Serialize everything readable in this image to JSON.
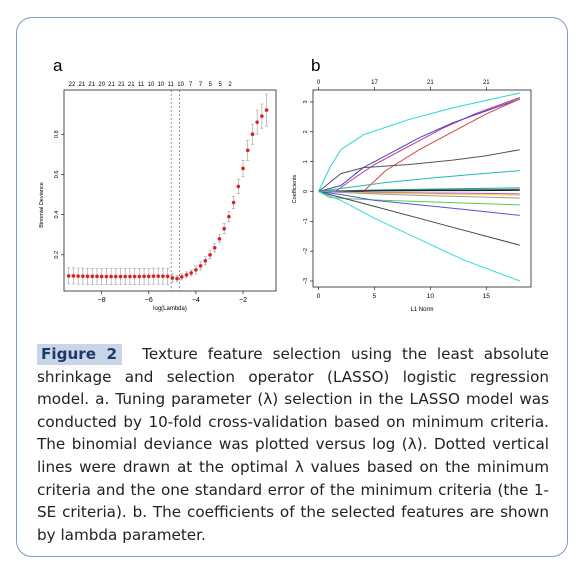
{
  "figure": {
    "panel_a_letter": "a",
    "panel_b_letter": "b",
    "label": "Figure 2",
    "caption": "Texture feature selection using the least absolute shrinkage and selection operator (LASSO) logistic regression model. a. Tuning parameter (λ) selection in the LASSO model was conducted by 10-fold cross-validation based on minimum criteria. The binomial deviance was plotted versus log (λ). Dotted vertical lines were drawn at the optimal λ values based on the minimum criteria and the one standard error of the minimum criteria (the 1-SE criteria). b. The coefficients of the selected features are shown by lambda parameter."
  },
  "chart_data": [
    {
      "type": "scatter",
      "xlabel": "log(Lambda)",
      "ylabel": "Binomial Deviance",
      "xlim": [
        -9.6,
        -0.6
      ],
      "ylim": [
        0.02,
        1.02
      ],
      "x_ticks": [
        -8,
        -6,
        -4,
        -2
      ],
      "y_ticks": [
        0.2,
        0.4,
        0.6,
        0.8
      ],
      "top_axis_labels": [
        "22",
        "21",
        "21",
        "20",
        "21",
        "21",
        "21",
        "11",
        "10",
        "10",
        "11",
        "10",
        "7",
        "7",
        "5",
        "5",
        "2"
      ],
      "reference_lines_x": [
        -5.05,
        -4.7
      ],
      "grid": false,
      "series": [
        {
          "x": [
            -9.4,
            -9.2,
            -9.0,
            -8.8,
            -8.6,
            -8.4,
            -8.2,
            -8.0,
            -7.8,
            -7.6,
            -7.4,
            -7.2,
            -7.0,
            -6.8,
            -6.6,
            -6.4,
            -6.2,
            -6.0,
            -5.8,
            -5.6,
            -5.4,
            -5.2,
            -5.0,
            -4.8,
            -4.6,
            -4.4,
            -4.2,
            -4.0,
            -3.8,
            -3.6,
            -3.4,
            -3.2,
            -3.0,
            -2.8,
            -2.6,
            -2.4,
            -2.2,
            -2.0,
            -1.8,
            -1.6,
            -1.4,
            -1.2,
            -1.0
          ],
          "y": [
            0.095,
            0.095,
            0.094,
            0.094,
            0.093,
            0.093,
            0.093,
            0.092,
            0.092,
            0.092,
            0.092,
            0.092,
            0.092,
            0.092,
            0.092,
            0.092,
            0.093,
            0.093,
            0.094,
            0.094,
            0.094,
            0.093,
            0.085,
            0.082,
            0.09,
            0.1,
            0.11,
            0.125,
            0.145,
            0.17,
            0.2,
            0.235,
            0.28,
            0.33,
            0.39,
            0.46,
            0.54,
            0.63,
            0.72,
            0.8,
            0.86,
            0.89,
            0.92
          ],
          "error": [
            0.04,
            0.04,
            0.04,
            0.04,
            0.04,
            0.04,
            0.04,
            0.04,
            0.04,
            0.04,
            0.04,
            0.04,
            0.04,
            0.04,
            0.04,
            0.04,
            0.04,
            0.04,
            0.04,
            0.04,
            0.04,
            0.04,
            0.02,
            0.015,
            0.015,
            0.015,
            0.015,
            0.02,
            0.02,
            0.02,
            0.02,
            0.02,
            0.02,
            0.025,
            0.025,
            0.03,
            0.035,
            0.04,
            0.05,
            0.05,
            0.06,
            0.06,
            0.08
          ],
          "color": "#e02020"
        }
      ]
    },
    {
      "type": "line",
      "xlabel": "L1 Norm",
      "ylabel": "Coefficients",
      "xlim": [
        -0.5,
        19
      ],
      "ylim": [
        -3.2,
        3.4
      ],
      "x_ticks": [
        0,
        5,
        10,
        15
      ],
      "y_ticks": [
        -3,
        -2,
        -1,
        0,
        1,
        2,
        3
      ],
      "top_axis_ticks": [
        0,
        5,
        10,
        15
      ],
      "top_axis_labels": [
        "0",
        "17",
        "21",
        "21"
      ],
      "grid": false,
      "series": [
        {
          "color": "#26d6d6",
          "x": [
            0,
            1,
            2,
            4,
            8,
            12,
            15,
            18
          ],
          "y": [
            0,
            0.8,
            1.4,
            1.9,
            2.4,
            2.8,
            3.05,
            3.3
          ]
        },
        {
          "color": "#c03b8a",
          "x": [
            0,
            1.5,
            3,
            5,
            8,
            11,
            14,
            18
          ],
          "y": [
            0,
            0,
            0.4,
            0.9,
            1.5,
            2.1,
            2.6,
            3.15
          ]
        },
        {
          "color": "#4444cc",
          "x": [
            0,
            2,
            4,
            6,
            9,
            12,
            15,
            18
          ],
          "y": [
            0,
            0.2,
            0.8,
            1.2,
            1.8,
            2.3,
            2.7,
            3.1
          ]
        },
        {
          "color": "#dd4444",
          "x": [
            0,
            4,
            6,
            9,
            12,
            15,
            18
          ],
          "y": [
            0,
            0,
            0.7,
            1.4,
            2.0,
            2.6,
            3.1
          ]
        },
        {
          "color": "#555555",
          "x": [
            0,
            2,
            4,
            8,
            12,
            15,
            18
          ],
          "y": [
            0,
            0.6,
            0.8,
            0.9,
            1.05,
            1.2,
            1.4
          ]
        },
        {
          "color": "#22b8b8",
          "x": [
            0,
            3,
            6,
            10,
            14,
            18
          ],
          "y": [
            0,
            0.15,
            0.3,
            0.45,
            0.58,
            0.7
          ]
        },
        {
          "color": "#22aa44",
          "x": [
            0,
            5,
            10,
            14,
            18
          ],
          "y": [
            0,
            0.05,
            0.08,
            0.1,
            0.12
          ]
        },
        {
          "color": "#3355cc",
          "x": [
            0,
            5,
            10,
            14,
            18
          ],
          "y": [
            0,
            0.03,
            0.05,
            0.06,
            0.07
          ]
        },
        {
          "color": "#111111",
          "x": [
            0,
            5,
            10,
            14,
            18
          ],
          "y": [
            0,
            0.02,
            0.03,
            0.03,
            0.04
          ]
        },
        {
          "color": "#cc44cc",
          "x": [
            0,
            5,
            10,
            14,
            18
          ],
          "y": [
            0,
            -0.03,
            -0.05,
            -0.06,
            -0.08
          ]
        },
        {
          "color": "#dddd33",
          "x": [
            0,
            5,
            10,
            14,
            18
          ],
          "y": [
            0,
            -0.05,
            -0.08,
            -0.1,
            -0.12
          ]
        },
        {
          "color": "#999999",
          "x": [
            0,
            5,
            10,
            14,
            18
          ],
          "y": [
            0,
            -0.08,
            -0.14,
            -0.18,
            -0.22
          ]
        },
        {
          "color": "#55cc55",
          "x": [
            0,
            1,
            3,
            6,
            10,
            14,
            18
          ],
          "y": [
            0,
            -0.2,
            -0.25,
            -0.3,
            -0.35,
            -0.4,
            -0.45
          ]
        },
        {
          "color": "#5555dd",
          "x": [
            0,
            2,
            5,
            9,
            13,
            18
          ],
          "y": [
            0,
            -0.1,
            -0.3,
            -0.45,
            -0.6,
            -0.8
          ]
        },
        {
          "color": "#444444",
          "x": [
            0,
            2,
            5,
            9,
            13,
            18
          ],
          "y": [
            0,
            -0.2,
            -0.5,
            -0.9,
            -1.3,
            -1.8
          ]
        },
        {
          "color": "#33dddd",
          "x": [
            0,
            2,
            5,
            9,
            13,
            18
          ],
          "y": [
            0,
            -0.3,
            -0.9,
            -1.6,
            -2.3,
            -3.0
          ]
        }
      ]
    }
  ]
}
